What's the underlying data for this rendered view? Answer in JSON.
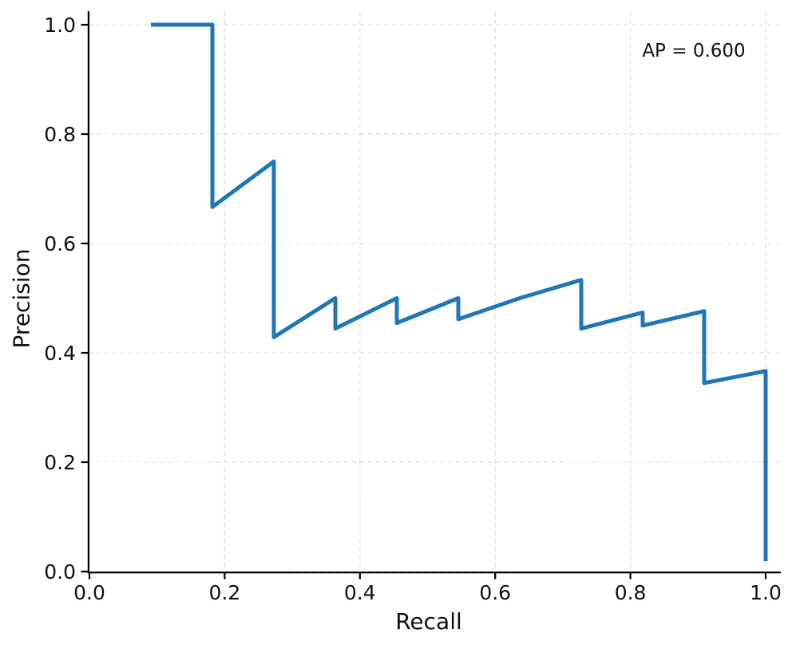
{
  "figure": {
    "background": "#ffffff"
  },
  "colors": {
    "line": "#1f77b4",
    "grid": "#d9d9d9",
    "spine": "#000000",
    "text": "#111111"
  },
  "chart_data": {
    "type": "line",
    "title": "",
    "xlabel": "Recall",
    "ylabel": "Precision",
    "annotation": "AP = 0.600",
    "ap_value": 0.6,
    "xlim": [
      0.0,
      1.0
    ],
    "ylim": [
      0.0,
      1.0
    ],
    "grid": true,
    "grid_style": "dashed",
    "legend": "none",
    "x_tick_values": [
      0.0,
      0.2,
      0.4,
      0.6,
      0.8,
      1.0
    ],
    "x_tick_labels": [
      "0.0",
      "0.2",
      "0.4",
      "0.6",
      "0.8",
      "1.0"
    ],
    "y_tick_values": [
      0.0,
      0.2,
      0.4,
      0.6,
      0.8,
      1.0
    ],
    "y_tick_labels": [
      "0.0",
      "0.2",
      "0.4",
      "0.6",
      "0.8",
      "1.0"
    ],
    "series": [
      {
        "name": "precision_recall_curve",
        "color": "#1f77b4",
        "line_width": 5,
        "points": [
          [
            0.0909,
            1.0
          ],
          [
            0.1818,
            1.0
          ],
          [
            0.1818,
            0.6667
          ],
          [
            0.2727,
            0.75
          ],
          [
            0.2727,
            0.4286
          ],
          [
            0.3636,
            0.5
          ],
          [
            0.3636,
            0.4444
          ],
          [
            0.4545,
            0.5
          ],
          [
            0.4545,
            0.4545
          ],
          [
            0.5455,
            0.5
          ],
          [
            0.5455,
            0.4615
          ],
          [
            0.6364,
            0.5
          ],
          [
            0.7273,
            0.5333
          ],
          [
            0.7273,
            0.4444
          ],
          [
            0.8182,
            0.4737
          ],
          [
            0.8182,
            0.45
          ],
          [
            0.9091,
            0.4762
          ],
          [
            0.9091,
            0.3448
          ],
          [
            1.0,
            0.3667
          ],
          [
            1.0,
            0.019
          ]
        ]
      }
    ]
  }
}
